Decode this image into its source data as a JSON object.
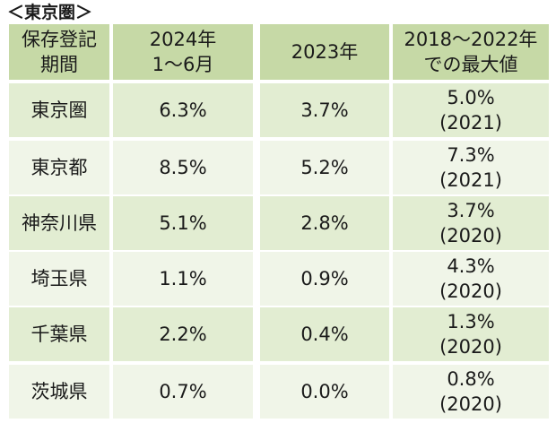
{
  "title": "＜東京圏＞",
  "header": {
    "region": [
      "保存登記",
      "期間"
    ],
    "current": [
      "2024年",
      "1～6月"
    ],
    "previous": "2023年",
    "max": [
      "2018～2022年",
      "での最大値"
    ]
  },
  "rows": [
    {
      "region": "東京圏",
      "current": "6.3%",
      "previous": "3.7%",
      "max_value": "5.0%",
      "max_year": "(2021)"
    },
    {
      "region": "東京都",
      "current": "8.5%",
      "previous": "5.2%",
      "max_value": "7.3%",
      "max_year": "(2021)"
    },
    {
      "region": "神奈川県",
      "current": "5.1%",
      "previous": "2.8%",
      "max_value": "3.7%",
      "max_year": "(2020)"
    },
    {
      "region": "埼玉県",
      "current": "1.1%",
      "previous": "0.9%",
      "max_value": "4.3%",
      "max_year": "(2020)"
    },
    {
      "region": "千葉県",
      "current": "2.2%",
      "previous": "0.4%",
      "max_value": "1.3%",
      "max_year": "(2020)"
    },
    {
      "region": "茨城県",
      "current": "0.7%",
      "previous": "0.0%",
      "max_value": "0.8%",
      "max_year": "(2020)"
    }
  ],
  "colors": {
    "header": "#c6d9a6",
    "row_odd": "#e2edd2",
    "row_even": "#f0f5e8"
  }
}
